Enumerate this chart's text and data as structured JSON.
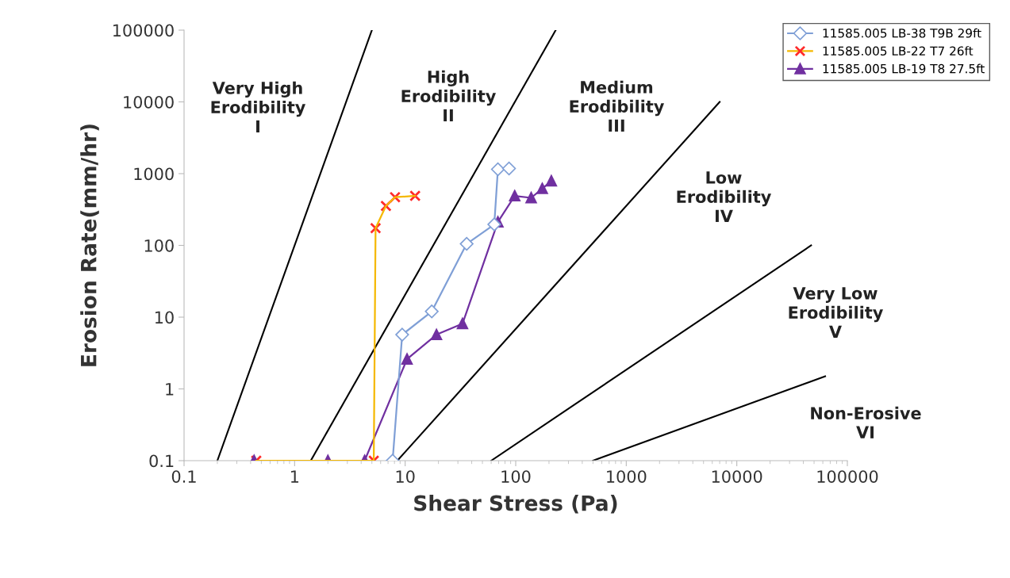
{
  "chart_data": {
    "type": "line",
    "xlabel": "Shear Stress (Pa)",
    "ylabel": "Erosion Rate(mm/hr)",
    "log": "xy",
    "xlim": [
      0.1,
      100000
    ],
    "ylim": [
      0.1,
      100000
    ],
    "xticks": [
      0.1,
      1,
      10,
      100,
      1000,
      10000,
      100000
    ],
    "yticks": [
      0.1,
      1,
      10,
      100,
      1000,
      10000,
      100000
    ],
    "grid": false,
    "legend": "top right",
    "annotations": [
      "Very High\nErodibility\nI",
      "High\nErodibility\nII",
      "Medium\nErodibility\nIII",
      "Low\nErodibility\nIV",
      "Very Low\nErodibility\nV",
      "Non-Erosive\nVI"
    ],
    "series": [
      {
        "name": "11585.005 LB-38 T9B 29ft",
        "color": "#7f9fd6",
        "marker": "diamond",
        "x": [
          7.7,
          9.4,
          17.4,
          36,
          64,
          69,
          87
        ],
        "values": [
          0.1,
          5.7,
          12,
          105,
          196,
          1150,
          1180
        ]
      },
      {
        "name": "11585.005 LB-22 T7 26ft",
        "color": "#f5b800",
        "colors": [
          "#ff2a2a",
          "#ff2a2a",
          "#ff2a2a",
          "#ff2a2a",
          "#ff2a2a",
          "#ff2a2a"
        ],
        "marker": "cross",
        "x": [
          0.45,
          5.2,
          5.4,
          6.7,
          8.1,
          12.3
        ],
        "values": [
          0.1,
          0.1,
          174,
          355,
          470,
          490
        ]
      },
      {
        "name": "11585.005 LB-19 T8 27.5ft",
        "color": "#7030a0",
        "marker": "triangle",
        "x": [
          0.43,
          2,
          4.3,
          10.4,
          19.2,
          33,
          69,
          98,
          138,
          174,
          210
        ],
        "values": [
          0.1,
          0.1,
          0.1,
          2.6,
          5.7,
          8.1,
          212,
          490,
          460,
          620,
          790
        ]
      },
      {
        "color": "#000000",
        "marker": "none",
        "x": [
          0.2,
          5
        ],
        "values": [
          0.1,
          100000
        ]
      },
      {
        "color": "#000000",
        "marker": "none",
        "x": [
          1.4,
          230
        ],
        "values": [
          0.1,
          100000
        ]
      },
      {
        "color": "#000000",
        "marker": "none",
        "x": [
          8.5,
          7000
        ],
        "values": [
          0.1,
          10000
        ]
      },
      {
        "color": "#000000",
        "marker": "none",
        "x": [
          60,
          47000
        ],
        "values": [
          0.1,
          100
        ]
      },
      {
        "color": "#000000",
        "marker": "none",
        "x": [
          500,
          63000
        ],
        "values": [
          0.1,
          1.5
        ]
      }
    ]
  }
}
